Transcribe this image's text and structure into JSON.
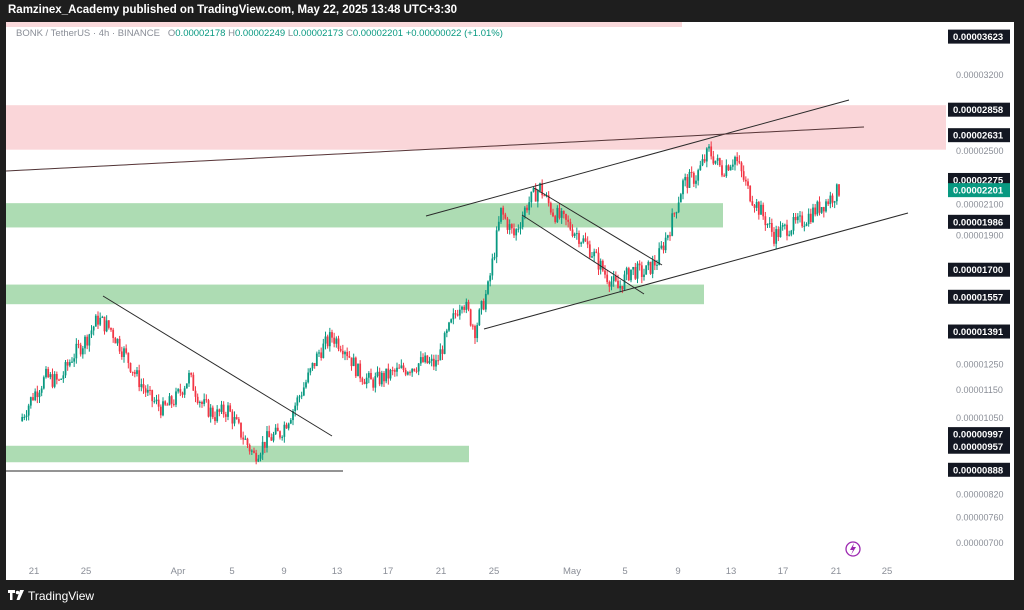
{
  "header": {
    "published": "Ramzinex_Academy published on TradingView.com, May 22, 2025 13:48 UTC+3:30"
  },
  "legend": {
    "symbol": "BONK / TetherUS · 4h · BINANCE",
    "open_label": "O",
    "open": "0.00002178",
    "high_label": "H",
    "high": "0.00002249",
    "low_label": "L",
    "low": "0.00002173",
    "close_label": "C",
    "close": "0.00002201",
    "change": "+0.00000022 (+1.01%)"
  },
  "footer": {
    "brand": "TradingView"
  },
  "colors": {
    "up": "#089981",
    "down": "#f23645",
    "resistance_zone": "#f9cfd2",
    "support_zone": "#9fd6a6",
    "label_bg": "#131722",
    "last_price_bg": "#089981"
  },
  "chart_data": {
    "type": "candlestick",
    "scale": "log",
    "ylim": [
      6.8e-06,
      3.75e-05
    ],
    "y_ticks": [
      "0.00000700",
      "0.00000760",
      "0.00000820",
      "0.00001050",
      "0.00001150",
      "0.00001250",
      "0.00001900",
      "0.00002100",
      "0.00002500",
      "0.00003200"
    ],
    "price_labels": [
      "0.00003623",
      "0.00002858",
      "0.00002631",
      "0.00002275",
      "0.00001986",
      "0.00001700",
      "0.00001557",
      "0.00001391",
      "0.00000997",
      "0.00000957",
      "0.00000888"
    ],
    "last_price": "0.00002201",
    "x_ticks": [
      "21",
      "25",
      "Apr",
      "5",
      "9",
      "13",
      "17",
      "21",
      "25",
      "May",
      "5",
      "9",
      "13",
      "17",
      "21",
      "25"
    ],
    "close_path": [
      [
        "Mar 20",
        1.04e-05
      ],
      [
        "Mar 21",
        1.13e-05
      ],
      [
        "Mar 22",
        1.2e-05
      ],
      [
        "Mar 23",
        1.18e-05
      ],
      [
        "Mar 24",
        1.28e-05
      ],
      [
        "Mar 25",
        1.35e-05
      ],
      [
        "Mar 26",
        1.45e-05
      ],
      [
        "Mar 27",
        1.4e-05
      ],
      [
        "Mar 28",
        1.3e-05
      ],
      [
        "Mar 29",
        1.2e-05
      ],
      [
        "Mar 30",
        1.12e-05
      ],
      [
        "Mar 31",
        1.08e-05
      ],
      [
        "Apr 1",
        1.12e-05
      ],
      [
        "Apr 2",
        1.2e-05
      ],
      [
        "Apr 3",
        1.1e-05
      ],
      [
        "Apr 4",
        1.06e-05
      ],
      [
        "Apr 5",
        1.08e-05
      ],
      [
        "Apr 6",
        1e-05
      ],
      [
        "Apr 7",
        9.3e-06
      ],
      [
        "Apr 8",
        9.8e-06
      ],
      [
        "Apr 9",
        1e-05
      ],
      [
        "Apr 10",
        1.08e-05
      ],
      [
        "Apr 11",
        1.18e-05
      ],
      [
        "Apr 12",
        1.3e-05
      ],
      [
        "Apr 13",
        1.37e-05
      ],
      [
        "Apr 14",
        1.32e-05
      ],
      [
        "Apr 15",
        1.22e-05
      ],
      [
        "Apr 16",
        1.18e-05
      ],
      [
        "Apr 17",
        1.2e-05
      ],
      [
        "Apr 18",
        1.22e-05
      ],
      [
        "Apr 19",
        1.24e-05
      ],
      [
        "Apr 20",
        1.26e-05
      ],
      [
        "Apr 21",
        1.25e-05
      ],
      [
        "Apr 22",
        1.4e-05
      ],
      [
        "Apr 23",
        1.55e-05
      ],
      [
        "Apr 24",
        1.4e-05
      ],
      [
        "Apr 25",
        1.6e-05
      ],
      [
        "Apr 26",
        2.05e-05
      ],
      [
        "Apr 27",
        1.9e-05
      ],
      [
        "Apr 28",
        2.1e-05
      ],
      [
        "Apr 29",
        2.22e-05
      ],
      [
        "Apr 30",
        2.05e-05
      ],
      [
        "May 1",
        1.98e-05
      ],
      [
        "May 2",
        1.9e-05
      ],
      [
        "May 3",
        1.8e-05
      ],
      [
        "May 4",
        1.68e-05
      ],
      [
        "May 5",
        1.6e-05
      ],
      [
        "May 6",
        1.7e-05
      ],
      [
        "May 7",
        1.68e-05
      ],
      [
        "May 8",
        1.75e-05
      ],
      [
        "May 9",
        1.95e-05
      ],
      [
        "May 10",
        2.25e-05
      ],
      [
        "May 11",
        2.3e-05
      ],
      [
        "May 12",
        2.5e-05
      ],
      [
        "May 13",
        2.35e-05
      ],
      [
        "May 14",
        2.45e-05
      ],
      [
        "May 15",
        2.2e-05
      ],
      [
        "May 16",
        2.05e-05
      ],
      [
        "May 17",
        1.9e-05
      ],
      [
        "May 18",
        1.95e-05
      ],
      [
        "May 19",
        1.98e-05
      ],
      [
        "May 20",
        2.05e-05
      ],
      [
        "May 21",
        2.12e-05
      ],
      [
        "May 22",
        2.2e-05
      ]
    ],
    "zones": [
      {
        "kind": "resistance",
        "from": 2.51e-05,
        "to": 2.9e-05
      },
      {
        "kind": "support",
        "from": 1.95e-05,
        "to": 2.11e-05
      },
      {
        "kind": "support",
        "from": 1.52e-05,
        "to": 1.62e-05
      },
      {
        "kind": "support",
        "from": 9.1e-06,
        "to": 9.6e-06
      }
    ],
    "grid": false
  }
}
